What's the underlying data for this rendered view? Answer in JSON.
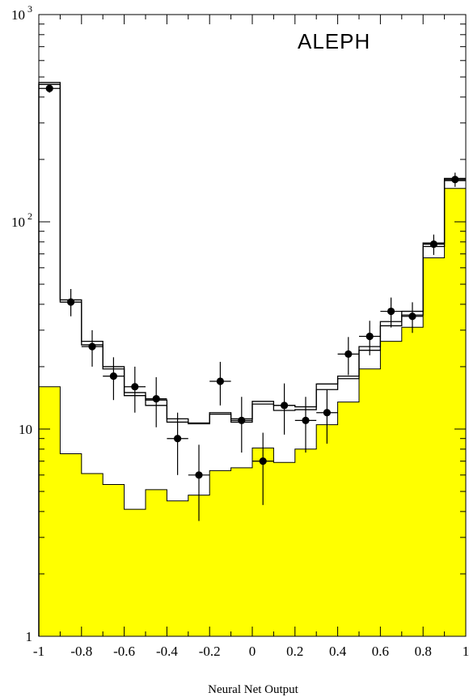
{
  "chart_data": {
    "type": "histogram",
    "annotation": "ALEPH",
    "xlabel": "Neural Net Output",
    "ylabel": "",
    "xlim": [
      -1,
      1
    ],
    "ylim": [
      1,
      1000
    ],
    "yscale": "log",
    "grid": false,
    "bin_edges": [
      -1,
      -0.9,
      -0.8,
      -0.7,
      -0.6,
      -0.5,
      -0.4,
      -0.3,
      -0.2,
      -0.1,
      0,
      0.1,
      0.2,
      0.3,
      0.4,
      0.5,
      0.6,
      0.7,
      0.8,
      0.9,
      1
    ],
    "x_ticks": [
      {
        "value": -1,
        "label": "-1"
      },
      {
        "value": -0.8,
        "label": "-0.8"
      },
      {
        "value": -0.6,
        "label": "-0.6"
      },
      {
        "value": -0.4,
        "label": "-0.4"
      },
      {
        "value": -0.2,
        "label": "-0.2"
      },
      {
        "value": 0,
        "label": "0"
      },
      {
        "value": 0.2,
        "label": "0.2"
      },
      {
        "value": 0.4,
        "label": "0.4"
      },
      {
        "value": 0.6,
        "label": "0.6"
      },
      {
        "value": 0.8,
        "label": "0.8"
      },
      {
        "value": 1,
        "label": "1"
      }
    ],
    "y_ticks": [
      {
        "value": 1,
        "base": "1",
        "exp": ""
      },
      {
        "value": 10,
        "base": "10",
        "exp": ""
      },
      {
        "value": 100,
        "base": "10",
        "exp": "2"
      },
      {
        "value": 1000,
        "base": "10",
        "exp": "3"
      }
    ],
    "series": [
      {
        "kind": "filled_histogram",
        "color": "#ffff00",
        "values": [
          16,
          7.6,
          6.1,
          5.4,
          4.1,
          5.1,
          4.5,
          4.8,
          6.3,
          6.5,
          8.1,
          6.9,
          8.0,
          10.5,
          13.5,
          19.5,
          26.5,
          31,
          67,
          145
        ]
      },
      {
        "kind": "step_histogram",
        "color": "#000000",
        "values": [
          460,
          41,
          25.5,
          19.5,
          14.5,
          13.0,
          10.8,
          10.6,
          11.8,
          10.8,
          13.2,
          12.3,
          12.4,
          15.5,
          17.5,
          24.0,
          31.5,
          35.5,
          76,
          158
        ]
      },
      {
        "kind": "step_histogram",
        "color": "#000000",
        "values": [
          470,
          42,
          26.5,
          20.0,
          15.0,
          13.8,
          11.2,
          10.7,
          12.0,
          11.2,
          13.6,
          13.0,
          12.8,
          16.5,
          18.0,
          25.0,
          33.0,
          37.0,
          79,
          162
        ]
      },
      {
        "kind": "data_points",
        "color": "#000000",
        "x": [
          -0.95,
          -0.85,
          -0.75,
          -0.65,
          -0.55,
          -0.45,
          -0.35,
          -0.25,
          -0.15,
          -0.05,
          0.05,
          0.15,
          0.25,
          0.35,
          0.45,
          0.55,
          0.65,
          0.75,
          0.85,
          0.95
        ],
        "y": [
          440,
          41,
          25,
          18,
          16,
          14,
          9,
          6,
          17,
          11,
          7,
          13,
          11,
          12,
          23,
          28,
          37,
          35,
          78,
          160
        ],
        "y_err_low": [
          20,
          6,
          5,
          4.2,
          4,
          3.8,
          3,
          2.4,
          4,
          3.3,
          2.7,
          3.6,
          3.3,
          3.5,
          4.8,
          5.3,
          6.1,
          5.9,
          8.8,
          12.6
        ],
        "y_err_high": [
          20,
          6.4,
          5,
          4.2,
          4,
          3.8,
          3,
          2.4,
          4.1,
          3.3,
          2.6,
          3.6,
          3.3,
          3.5,
          4.8,
          5.3,
          6.1,
          5.9,
          8.8,
          12.6
        ]
      }
    ]
  }
}
